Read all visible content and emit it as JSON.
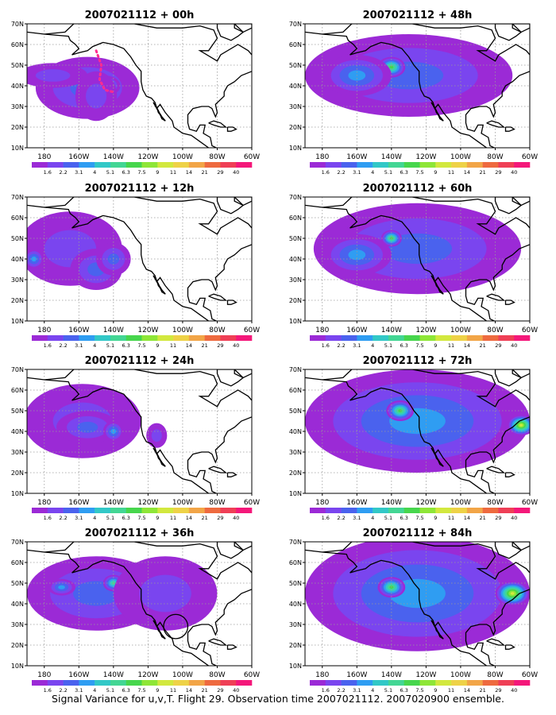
{
  "caption": "Signal Variance for u,v,T. Flight 29. Observation time 2007021112. 2007020900 ensemble.",
  "colors": {
    "scale": [
      "#9b2ad6",
      "#7a45ef",
      "#4a62ee",
      "#2f9df2",
      "#32c8c7",
      "#43d694",
      "#47d64d",
      "#8ee637",
      "#d2e83e",
      "#eed247",
      "#f2a547",
      "#ee6a3f",
      "#ef3f56",
      "#f4187a"
    ],
    "coast": "#000000",
    "grid": "#9a9a9a",
    "track": "#ff2c8f"
  },
  "chart_data": [
    {
      "type": "heatmap",
      "title": "2007021112 + 00h",
      "lat_ticks": [
        "10N",
        "20N",
        "30N",
        "40N",
        "50N",
        "60N",
        "70N"
      ],
      "lon_ticks": [
        "180",
        "160W",
        "140W",
        "120W",
        "100W",
        "80W",
        "60W"
      ],
      "lat_range": [
        10,
        70
      ],
      "lon_range": [
        -190,
        -60
      ],
      "colorbar_labels": [
        "1.6",
        "2.2",
        "3.1",
        "4",
        "5.1",
        "6.3",
        "7.5",
        "9",
        "11",
        "14",
        "21",
        "29",
        "40"
      ],
      "grid": true,
      "features": [
        {
          "lon": -155,
          "lat": 39,
          "level": 2,
          "rlon": 30,
          "rlat": 15
        },
        {
          "lon": -145,
          "lat": 40,
          "level": 4,
          "rlon": 9,
          "rlat": 5
        },
        {
          "lon": -175,
          "lat": 45,
          "level": 1,
          "rlon": 20,
          "rlat": 6
        },
        {
          "lon": -150,
          "lat": 35,
          "level": 1,
          "rlon": 12,
          "rlat": 12
        }
      ],
      "track": [
        [
          -150,
          57
        ],
        [
          -147,
          50
        ],
        [
          -148,
          43
        ],
        [
          -145,
          38
        ],
        [
          -140,
          37
        ]
      ]
    },
    {
      "type": "heatmap",
      "title": "2007021112 + 12h",
      "lat_ticks": [
        "10N",
        "20N",
        "30N",
        "40N",
        "50N",
        "60N",
        "70N"
      ],
      "lon_ticks": [
        "180",
        "160W",
        "140W",
        "120W",
        "100W",
        "80W",
        "60W"
      ],
      "lat_range": [
        10,
        70
      ],
      "lon_range": [
        -190,
        -60
      ],
      "colorbar_labels": [
        "1.6",
        "2.2",
        "3.1",
        "4",
        "5.1",
        "6.3",
        "7.5",
        "9",
        "11",
        "14",
        "21",
        "29",
        "40"
      ],
      "grid": true,
      "features": [
        {
          "lon": -165,
          "lat": 45,
          "level": 1,
          "rlon": 30,
          "rlat": 18
        },
        {
          "lon": -150,
          "lat": 35,
          "level": 2,
          "rlon": 15,
          "rlat": 10
        },
        {
          "lon": -186,
          "lat": 40,
          "level": 3,
          "rlon": 6,
          "rlat": 5
        },
        {
          "lon": -140,
          "lat": 40,
          "level": 2,
          "rlon": 10,
          "rlat": 8
        }
      ]
    },
    {
      "type": "heatmap",
      "title": "2007021112 + 24h",
      "lat_ticks": [
        "10N",
        "20N",
        "30N",
        "40N",
        "50N",
        "60N",
        "70N"
      ],
      "lon_ticks": [
        "180",
        "160W",
        "140W",
        "120W",
        "100W",
        "80W",
        "60W"
      ],
      "lat_range": [
        10,
        70
      ],
      "lon_range": [
        -190,
        -60
      ],
      "colorbar_labels": [
        "1.6",
        "2.2",
        "3.1",
        "4",
        "5.1",
        "6.3",
        "7.5",
        "9",
        "11",
        "14",
        "21",
        "29",
        "40"
      ],
      "grid": true,
      "features": [
        {
          "lon": -158,
          "lat": 45,
          "level": 1,
          "rlon": 34,
          "rlat": 18
        },
        {
          "lon": -155,
          "lat": 42,
          "level": 2,
          "rlon": 18,
          "rlat": 8
        },
        {
          "lon": -140,
          "lat": 40,
          "level": 3,
          "rlon": 6,
          "rlat": 5
        },
        {
          "lon": -115,
          "lat": 38,
          "level": 1,
          "rlon": 6,
          "rlat": 6
        }
      ]
    },
    {
      "type": "heatmap",
      "title": "2007021112 + 36h",
      "lat_ticks": [
        "10N",
        "20N",
        "30N",
        "40N",
        "50N",
        "60N",
        "70N"
      ],
      "lon_ticks": [
        "180",
        "160W",
        "140W",
        "120W",
        "100W",
        "80W",
        "60W"
      ],
      "lat_range": [
        10,
        70
      ],
      "lon_range": [
        -190,
        -60
      ],
      "colorbar_labels": [
        "1.6",
        "2.2",
        "3.1",
        "4",
        "5.1",
        "6.3",
        "7.5",
        "9",
        "11",
        "14",
        "21",
        "29",
        "40"
      ],
      "grid": true,
      "features": [
        {
          "lon": -150,
          "lat": 45,
          "level": 2,
          "rlon": 40,
          "rlat": 18
        },
        {
          "lon": -140,
          "lat": 50,
          "level": 5,
          "rlon": 6,
          "rlat": 4
        },
        {
          "lon": -170,
          "lat": 48,
          "level": 3,
          "rlon": 8,
          "rlat": 4
        },
        {
          "lon": -110,
          "lat": 45,
          "level": 1,
          "rlon": 30,
          "rlat": 18
        }
      ],
      "circle": {
        "lon": -104,
        "lat": 29,
        "r": 7
      }
    },
    {
      "type": "heatmap",
      "title": "2007021112 + 48h",
      "lat_ticks": [
        "10N",
        "20N",
        "30N",
        "40N",
        "50N",
        "60N",
        "70N"
      ],
      "lon_ticks": [
        "180",
        "160W",
        "140W",
        "120W",
        "100W",
        "80W",
        "60W"
      ],
      "lat_range": [
        10,
        70
      ],
      "lon_range": [
        -190,
        -60
      ],
      "colorbar_labels": [
        "1.6",
        "2.2",
        "3.1",
        "4",
        "5.1",
        "6.3",
        "7.5",
        "9",
        "11",
        "14",
        "21",
        "29",
        "40"
      ],
      "grid": true,
      "features": [
        {
          "lon": -130,
          "lat": 45,
          "level": 2,
          "rlon": 60,
          "rlat": 20
        },
        {
          "lon": -140,
          "lat": 49,
          "level": 6,
          "rlon": 8,
          "rlat": 5
        },
        {
          "lon": -160,
          "lat": 45,
          "level": 3,
          "rlon": 20,
          "rlat": 10
        }
      ]
    },
    {
      "type": "heatmap",
      "title": "2007021112 + 60h",
      "lat_ticks": [
        "10N",
        "20N",
        "30N",
        "40N",
        "50N",
        "60N",
        "70N"
      ],
      "lon_ticks": [
        "180",
        "160W",
        "140W",
        "120W",
        "100W",
        "80W",
        "60W"
      ],
      "lat_range": [
        10,
        70
      ],
      "lon_range": [
        -190,
        -60
      ],
      "colorbar_labels": [
        "1.6",
        "2.2",
        "3.1",
        "4",
        "5.1",
        "6.3",
        "7.5",
        "9",
        "11",
        "14",
        "21",
        "29",
        "40"
      ],
      "grid": true,
      "features": [
        {
          "lon": -125,
          "lat": 45,
          "level": 2,
          "rlon": 60,
          "rlat": 22
        },
        {
          "lon": -140,
          "lat": 50,
          "level": 6,
          "rlon": 6,
          "rlat": 4
        },
        {
          "lon": -160,
          "lat": 42,
          "level": 3,
          "rlon": 20,
          "rlat": 10
        }
      ]
    },
    {
      "type": "heatmap",
      "title": "2007021112 + 72h",
      "lat_ticks": [
        "10N",
        "20N",
        "30N",
        "40N",
        "50N",
        "60N",
        "70N"
      ],
      "lon_ticks": [
        "180",
        "160W",
        "140W",
        "120W",
        "100W",
        "80W",
        "60W"
      ],
      "lat_range": [
        10,
        70
      ],
      "lon_range": [
        -190,
        -60
      ],
      "colorbar_labels": [
        "1.6",
        "2.2",
        "3.1",
        "4",
        "5.1",
        "6.3",
        "7.5",
        "9",
        "11",
        "14",
        "21",
        "29",
        "40"
      ],
      "grid": true,
      "features": [
        {
          "lon": -125,
          "lat": 45,
          "level": 3,
          "rlon": 65,
          "rlat": 25
        },
        {
          "lon": -135,
          "lat": 50,
          "level": 6,
          "rlon": 8,
          "rlat": 5
        },
        {
          "lon": -65,
          "lat": 43,
          "level": 8,
          "rlon": 8,
          "rlat": 5
        }
      ]
    },
    {
      "type": "heatmap",
      "title": "2007021112 + 84h",
      "lat_ticks": [
        "10N",
        "20N",
        "30N",
        "40N",
        "50N",
        "60N",
        "70N"
      ],
      "lon_ticks": [
        "180",
        "160W",
        "140W",
        "120W",
        "100W",
        "80W",
        "60W"
      ],
      "lat_range": [
        10,
        70
      ],
      "lon_range": [
        -190,
        -60
      ],
      "colorbar_labels": [
        "1.6",
        "2.2",
        "3.1",
        "4",
        "5.1",
        "6.3",
        "7.5",
        "9",
        "11",
        "14",
        "21",
        "29",
        "40"
      ],
      "grid": true,
      "features": [
        {
          "lon": -125,
          "lat": 45,
          "level": 3,
          "rlon": 65,
          "rlat": 28
        },
        {
          "lon": -140,
          "lat": 48,
          "level": 6,
          "rlon": 8,
          "rlat": 5
        },
        {
          "lon": -70,
          "lat": 45,
          "level": 8,
          "rlon": 10,
          "rlat": 6
        }
      ]
    }
  ]
}
